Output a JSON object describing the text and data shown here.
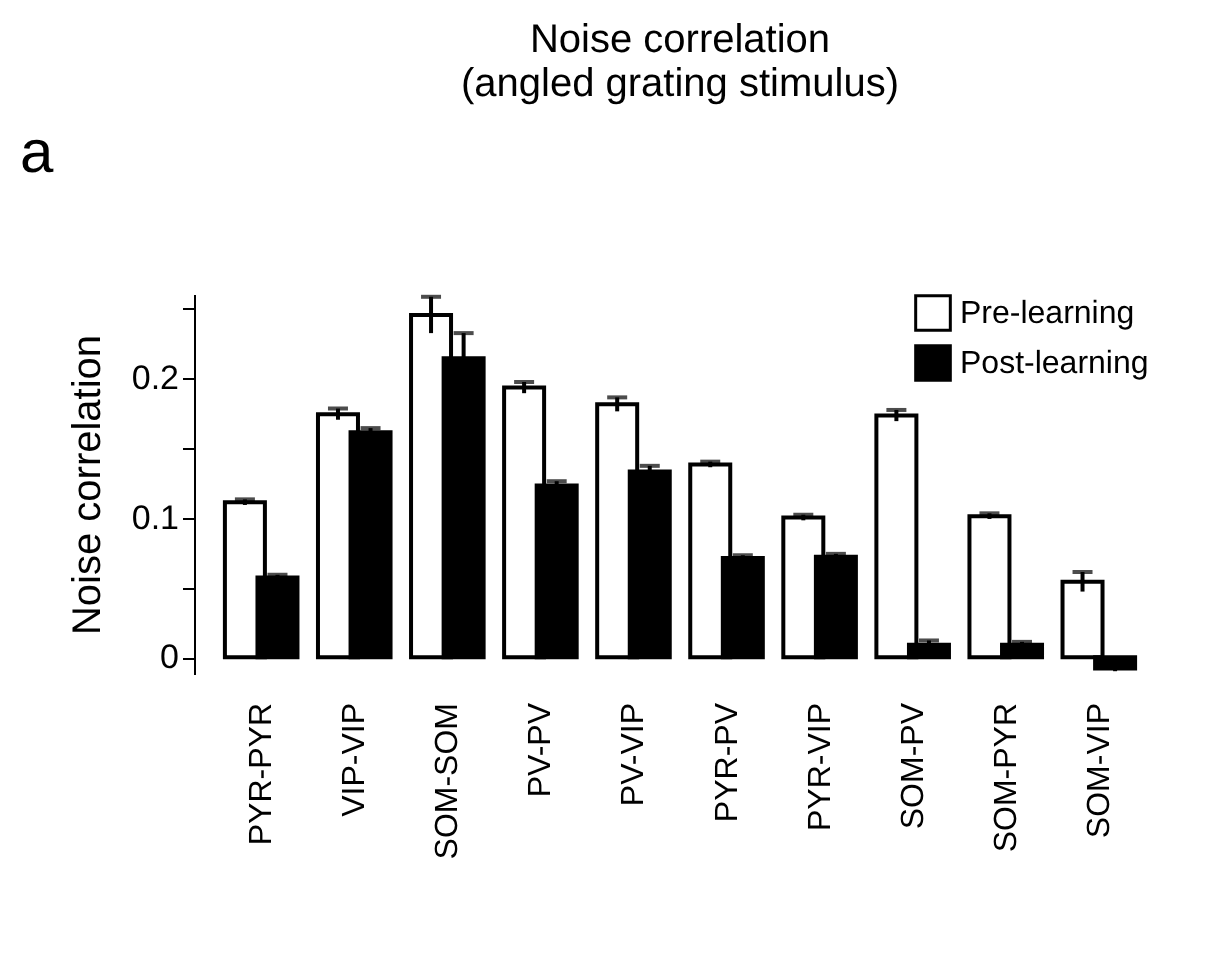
{
  "chart_data": {
    "type": "bar",
    "title": "Noise correlation",
    "subtitle": "(angled grating stimulus)",
    "ylabel": "Noise correlation",
    "annotations": [
      "a"
    ],
    "categories": [
      "PYR-PYR",
      "VIP-VIP",
      "SOM-SOM",
      "PV-PV",
      "PV-VIP",
      "PYR-PV",
      "PYR-VIP",
      "SOM-PV",
      "SOM-PYR",
      "SOM-VIP"
    ],
    "series": [
      {
        "name": "Pre-learning",
        "color": "#ffffff",
        "values": [
          0.111,
          0.174,
          0.245,
          0.193,
          0.181,
          0.138,
          0.1,
          0.173,
          0.101,
          0.054
        ],
        "errors": [
          0.002,
          0.004,
          0.013,
          0.004,
          0.005,
          0.002,
          0.002,
          0.004,
          0.002,
          0.007
        ]
      },
      {
        "name": "Post-learning",
        "color": "#000000",
        "values": [
          0.057,
          0.161,
          0.214,
          0.123,
          0.133,
          0.071,
          0.072,
          0.009,
          0.009,
          -0.008
        ],
        "errors": [
          0.002,
          0.003,
          0.018,
          0.003,
          0.004,
          0.002,
          0.002,
          0.003,
          0.002,
          0.002
        ]
      }
    ],
    "ylim": [
      -0.012,
      0.26
    ],
    "yticks": [
      0,
      {
        "value": 0.05,
        "label": null
      },
      0.1,
      {
        "value": 0.15,
        "label": null
      },
      0.2,
      {
        "value": 0.25,
        "label": null
      }
    ],
    "grid": false,
    "legend": "top right"
  }
}
